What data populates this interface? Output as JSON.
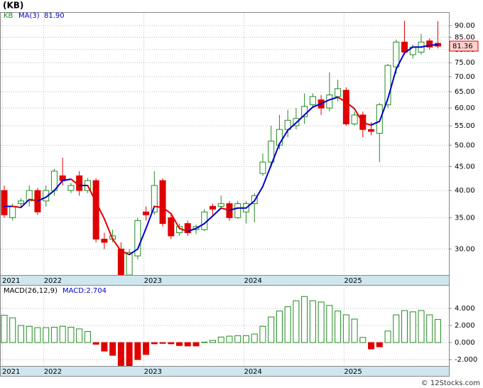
{
  "chart_data": [
    {
      "type": "candlestick",
      "title": "(KB)",
      "log_scale": true,
      "grid": true,
      "categories": [
        "2021",
        null,
        null,
        null,
        null,
        "2022",
        null,
        null,
        null,
        null,
        null,
        null,
        null,
        null,
        null,
        null,
        null,
        "2023",
        null,
        null,
        null,
        null,
        null,
        null,
        null,
        null,
        null,
        null,
        null,
        "2024",
        null,
        null,
        null,
        null,
        null,
        null,
        null,
        null,
        null,
        null,
        null,
        "2025",
        null,
        null,
        null,
        null,
        null,
        null,
        null,
        null,
        null,
        null,
        null
      ],
      "ylim": [
        26.4,
        96.2
      ],
      "yticks": [
        {
          "value": 30,
          "label": "30.00"
        },
        {
          "value": 35,
          "label": "35.00"
        },
        {
          "value": 40,
          "label": "40.00"
        },
        {
          "value": 45,
          "label": "45.00"
        },
        {
          "value": 50,
          "label": "50.00"
        },
        {
          "value": 55,
          "label": "55.00"
        },
        {
          "value": 60,
          "label": "60.00"
        },
        {
          "value": 65,
          "label": "65.00"
        },
        {
          "value": 70,
          "label": "70.00"
        },
        {
          "value": 75,
          "label": "75.00"
        },
        {
          "value": 80,
          "label": "80.00"
        },
        {
          "value": 85,
          "label": "85.00"
        },
        {
          "value": 90,
          "label": "90.00"
        }
      ],
      "last_price": 81.36,
      "series": [
        {
          "name": "KB",
          "up_color": "#228b22",
          "down_color": "#e00000",
          "open": [
            40,
            35,
            37.5,
            38,
            40,
            38,
            40,
            43,
            40,
            43,
            40,
            42,
            31.5,
            31.5,
            30,
            26.4,
            29,
            36,
            36,
            42,
            35,
            32.5,
            34,
            33,
            33,
            37,
            37,
            37.5,
            35,
            36,
            37.5,
            43.5,
            46,
            50,
            54,
            55,
            57.5,
            61,
            62.5,
            60,
            63.5,
            65.5,
            55.5,
            58,
            54,
            53,
            61,
            73.5,
            83,
            78,
            79,
            83.5,
            82.5
          ],
          "high": [
            41,
            37.5,
            38.5,
            41,
            40.5,
            41,
            44.5,
            47,
            41.5,
            44,
            42.5,
            42.5,
            32.5,
            33,
            31,
            30,
            35,
            37,
            44,
            42.5,
            35.5,
            34,
            34.5,
            33.8,
            36.5,
            37.5,
            39,
            38,
            38,
            38,
            39.5,
            48,
            55,
            58,
            59.5,
            60,
            64.5,
            64.5,
            64,
            71.5,
            69,
            66.5,
            59,
            59,
            56,
            61.5,
            74.5,
            84,
            92.2,
            82,
            86.5,
            84.5,
            92
          ],
          "low": [
            35,
            34.5,
            37,
            37,
            35.5,
            37,
            39,
            41,
            39.5,
            39,
            39.5,
            31,
            30,
            31,
            25.8,
            26,
            28.5,
            34.5,
            35.5,
            33.5,
            31.5,
            32,
            32,
            32.3,
            32.8,
            35.5,
            36.5,
            34.5,
            34.8,
            34,
            34.2,
            43,
            45,
            49,
            52,
            54,
            55.5,
            60,
            58,
            59,
            62,
            55,
            55,
            52,
            52.5,
            46,
            60,
            71,
            78,
            76.5,
            78,
            80,
            80.5
          ],
          "close": [
            35.5,
            37,
            38,
            40,
            36,
            40,
            44,
            42,
            41,
            40,
            42,
            31.5,
            31,
            32,
            26,
            29.5,
            34.5,
            35.5,
            41,
            34,
            32,
            33.5,
            32.5,
            33.5,
            36,
            36.5,
            37.5,
            35,
            37.5,
            37.5,
            39,
            46,
            51,
            54,
            56.5,
            57,
            60.5,
            63.5,
            60,
            64,
            66,
            55.5,
            58,
            54,
            53.5,
            61,
            74,
            83,
            79,
            81,
            83,
            81,
            81.36
          ]
        },
        {
          "name": "MA(3)",
          "up_color": "#0000cc",
          "down_color": "#e00000",
          "value_label": "81.90",
          "values": [
            37,
            37,
            36.8,
            38.3,
            38,
            38.7,
            40,
            42,
            42.3,
            41,
            41,
            37.8,
            34.8,
            31.5,
            29.7,
            29.2,
            30,
            33.2,
            37,
            36.8,
            35.7,
            33.2,
            32.7,
            33.2,
            34,
            35.3,
            36.7,
            36.3,
            36.7,
            36.7,
            38,
            40.8,
            45.3,
            50.3,
            53.8,
            55.8,
            58,
            60.3,
            61.3,
            62.5,
            63.3,
            61.8,
            59.8,
            55.8,
            55.2,
            56.2,
            62.8,
            72.7,
            78.7,
            81,
            81,
            81.7,
            81.9
          ]
        }
      ]
    },
    {
      "type": "bar",
      "title": "MACD(26,12,9)",
      "grid": true,
      "ylim": [
        -2.83,
        6.67
      ],
      "yticks": [
        {
          "value": -2,
          "label": "-2.000"
        },
        {
          "value": 0,
          "label": "0.000"
        },
        {
          "value": 2,
          "label": "2.000"
        },
        {
          "value": 4,
          "label": "4.000"
        }
      ],
      "series": [
        {
          "name": "MACD",
          "value_label": "MACD:2.704",
          "up_color": "#228b22",
          "down_color": "#e00000",
          "values": [
            3.2,
            2.9,
            2.0,
            1.9,
            1.75,
            1.75,
            1.8,
            1.9,
            1.8,
            1.6,
            1.3,
            -0.2,
            -1.0,
            -1.5,
            -2.7,
            -2.75,
            -2.0,
            -1.4,
            -0.15,
            -0.1,
            -0.15,
            -0.35,
            -0.4,
            -0.4,
            0.05,
            0.25,
            0.65,
            0.75,
            0.8,
            0.8,
            1.0,
            1.9,
            3.0,
            3.7,
            4.2,
            4.9,
            5.4,
            4.9,
            4.75,
            4.35,
            3.7,
            3.25,
            2.75,
            0.6,
            -0.75,
            -0.5,
            1.35,
            3.25,
            3.75,
            3.6,
            3.75,
            3.25,
            2.704
          ]
        }
      ]
    }
  ],
  "footer": "© 12Stocks.com"
}
